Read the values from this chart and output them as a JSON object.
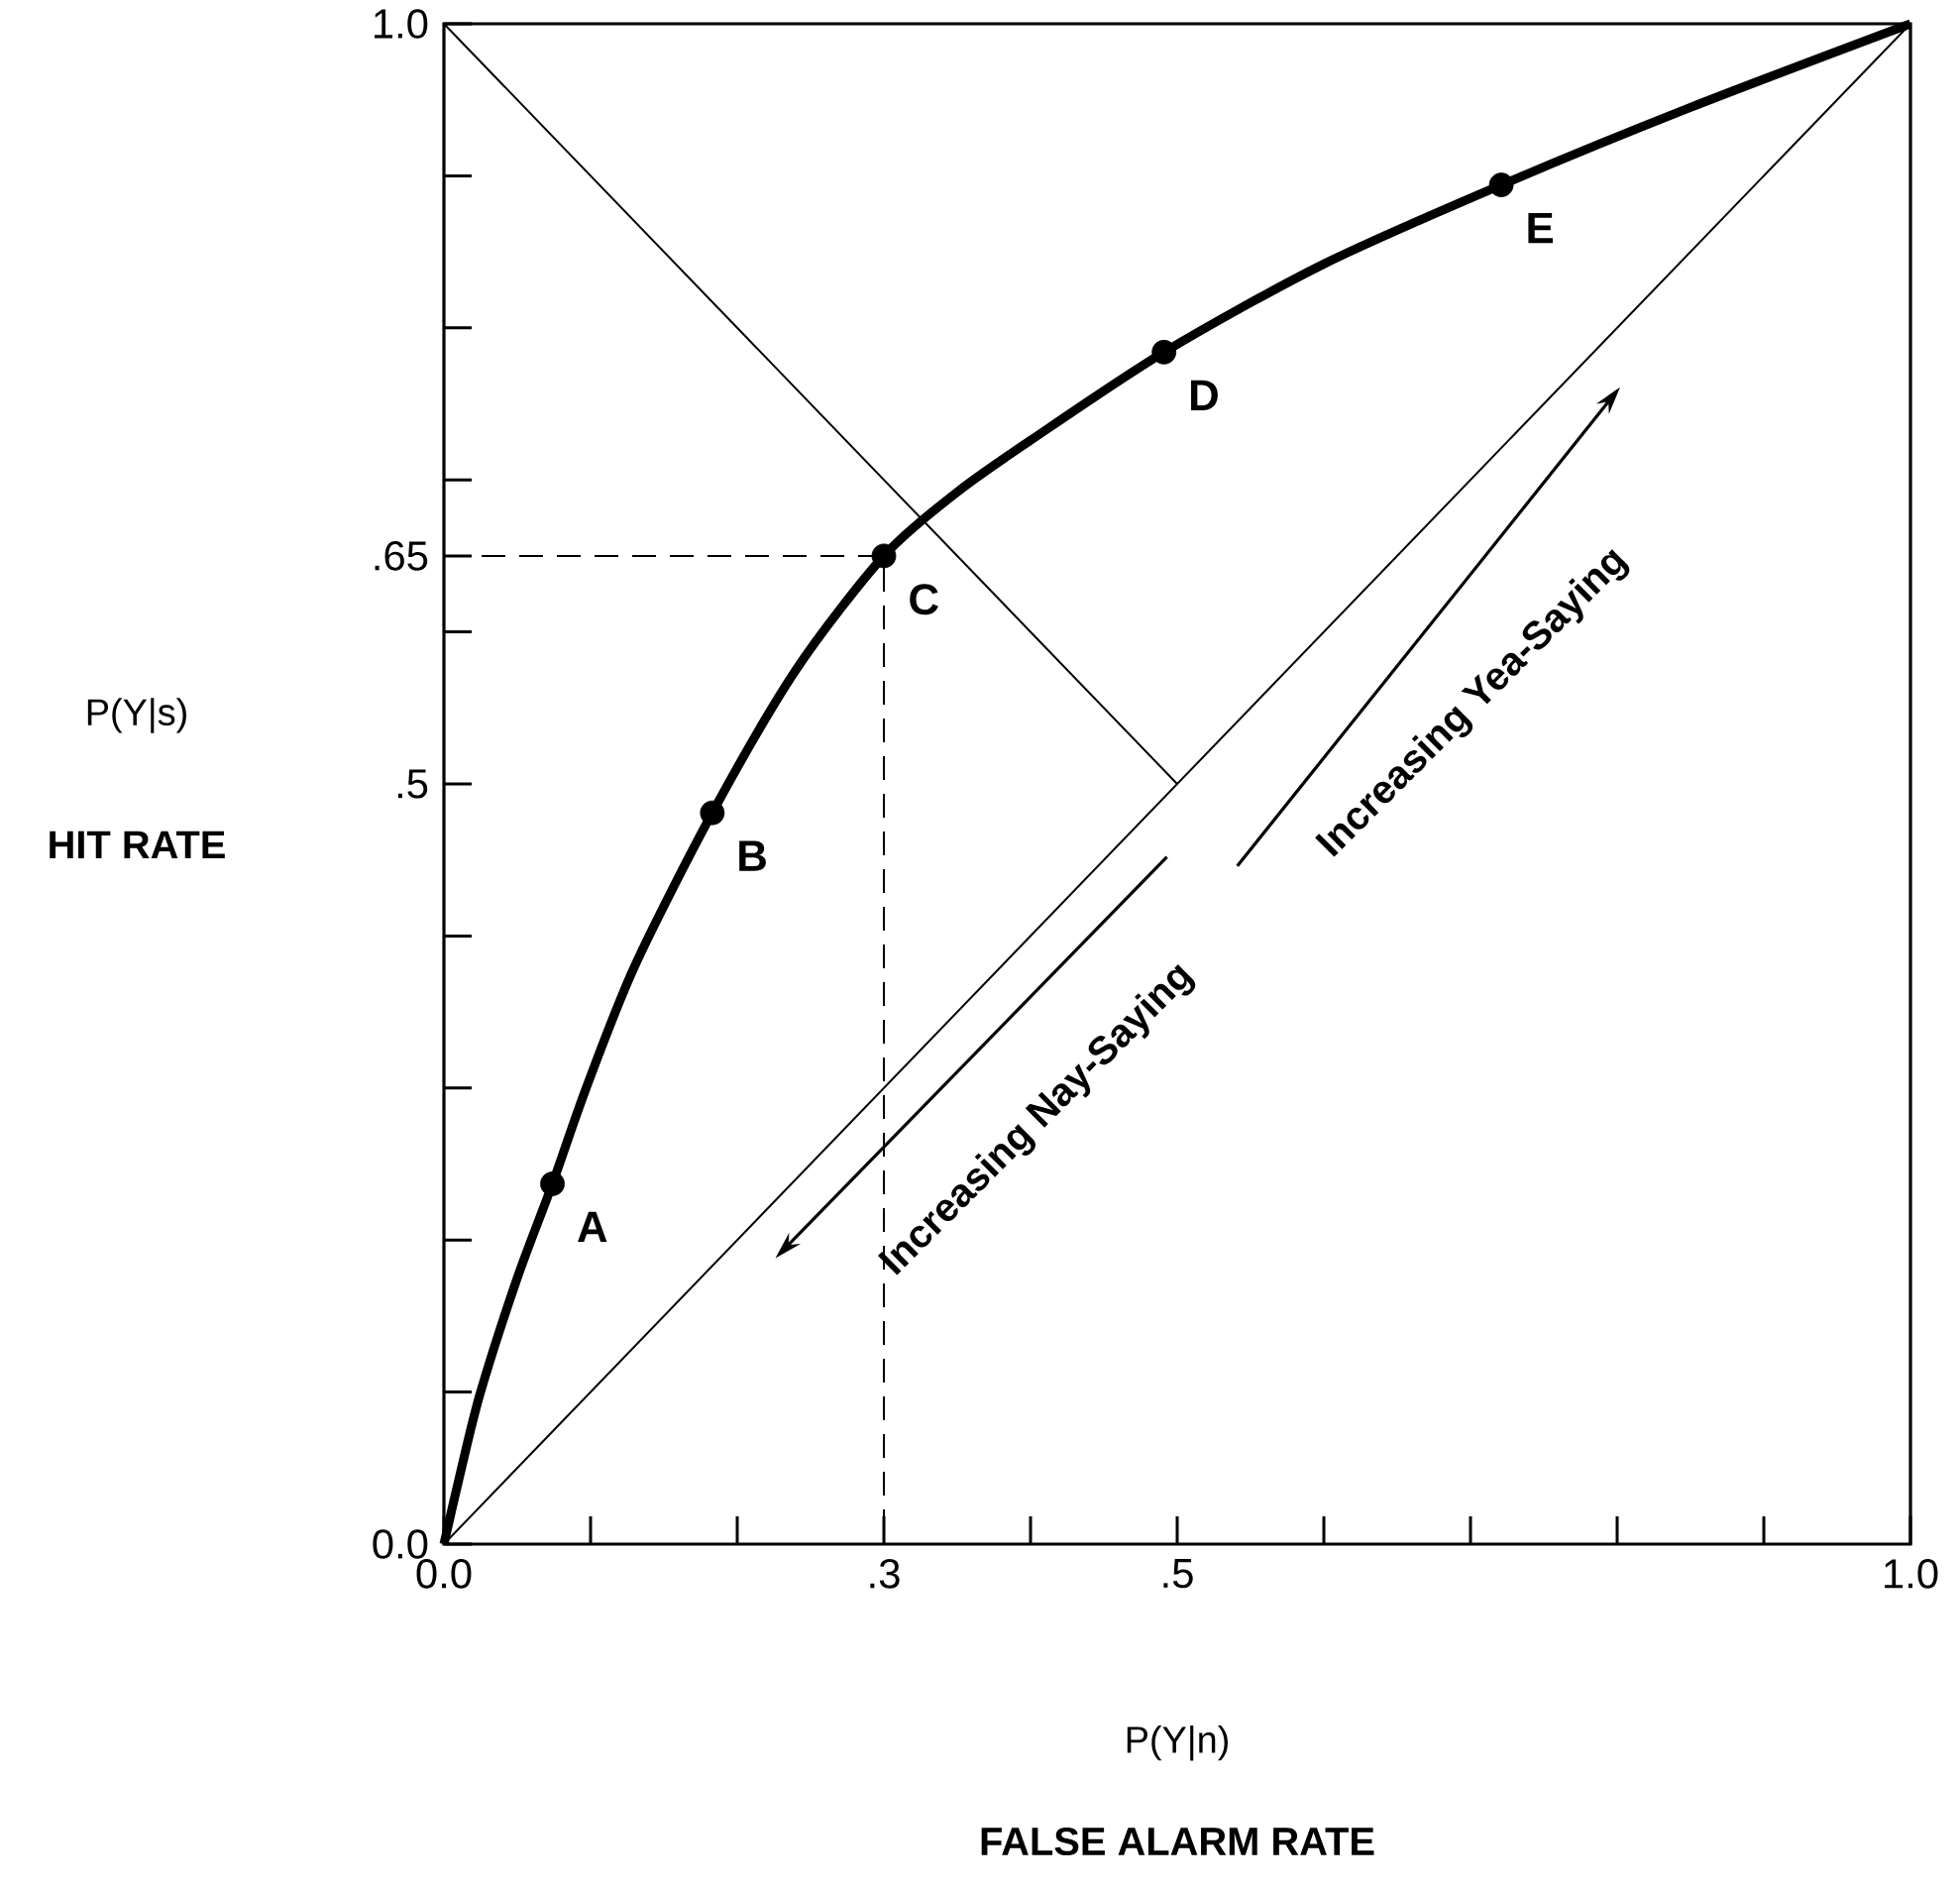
{
  "chart_data": {
    "type": "line",
    "xlabel": "P(Y|n)",
    "ylabel": "P(Y|s)",
    "xlim": [
      0,
      1
    ],
    "ylim": [
      0,
      1
    ],
    "xticks": [
      {
        "value": 0,
        "label": "0.0"
      },
      {
        "value": 0.1,
        "label": null
      },
      {
        "value": 0.2,
        "label": null
      },
      {
        "value": 0.3,
        "label": ".3"
      },
      {
        "value": 0.4,
        "label": null
      },
      {
        "value": 0.5,
        "label": ".5"
      },
      {
        "value": 0.6,
        "label": null
      },
      {
        "value": 0.7,
        "label": null
      },
      {
        "value": 0.8,
        "label": null
      },
      {
        "value": 0.9,
        "label": null
      },
      {
        "value": 1,
        "label": "1.0"
      }
    ],
    "yticks": [
      {
        "value": 0,
        "label": "0.0"
      },
      {
        "value": 0.1,
        "label": null
      },
      {
        "value": 0.2,
        "label": null
      },
      {
        "value": 0.3,
        "label": null
      },
      {
        "value": 0.4,
        "label": null
      },
      {
        "value": 0.5,
        "label": ".5"
      },
      {
        "value": 0.6,
        "label": null
      },
      {
        "value": 0.65,
        "label": ".65"
      },
      {
        "value": 0.7,
        "label": null
      },
      {
        "value": 0.8,
        "label": null
      },
      {
        "value": 0.9,
        "label": null
      },
      {
        "value": 1,
        "label": "1.0"
      }
    ],
    "series": [
      {
        "color": "#000000",
        "x": [
          0,
          0.012,
          0.025,
          0.05,
          0.074,
          0.097,
          0.13,
          0.183,
          0.24,
          0.3,
          0.35,
          0.4,
          0.491,
          0.6,
          0.721,
          0.85,
          1
        ],
        "values": [
          0,
          0.05,
          0.1,
          0.175,
          0.237,
          0.3,
          0.38,
          0.481,
          0.575,
          0.65,
          0.692,
          0.726,
          0.784,
          0.842,
          0.894,
          0.945,
          1
        ]
      },
      {
        "type": "scatter",
        "color": "#000000",
        "x": [
          0.074,
          0.183,
          0.3,
          0.491,
          0.721
        ],
        "values": [
          0.237,
          0.481,
          0.65,
          0.784,
          0.894
        ]
      },
      {
        "color": "#000000",
        "x": [
          0,
          1
        ],
        "values": [
          0,
          1
        ]
      },
      {
        "color": "#000000",
        "x": [
          0,
          0.5
        ],
        "values": [
          1,
          0.5
        ]
      },
      {
        "color": "#000000",
        "line_style": "dashed",
        "x": [
          0,
          0.3,
          0.3
        ],
        "values": [
          0.65,
          0.65,
          0
        ]
      }
    ],
    "annotations": [
      {
        "text": "A",
        "x": 0.074,
        "y": 0.237
      },
      {
        "text": "B",
        "x": 0.183,
        "y": 0.481
      },
      {
        "text": "C",
        "x": 0.3,
        "y": 0.65
      },
      {
        "text": "D",
        "x": 0.491,
        "y": 0.784
      },
      {
        "text": "E",
        "x": 0.721,
        "y": 0.894
      },
      "Increasing Yea-Saying",
      "Increasing Nay-Saying",
      "HIT RATE",
      "FALSE ALARM RATE"
    ]
  }
}
